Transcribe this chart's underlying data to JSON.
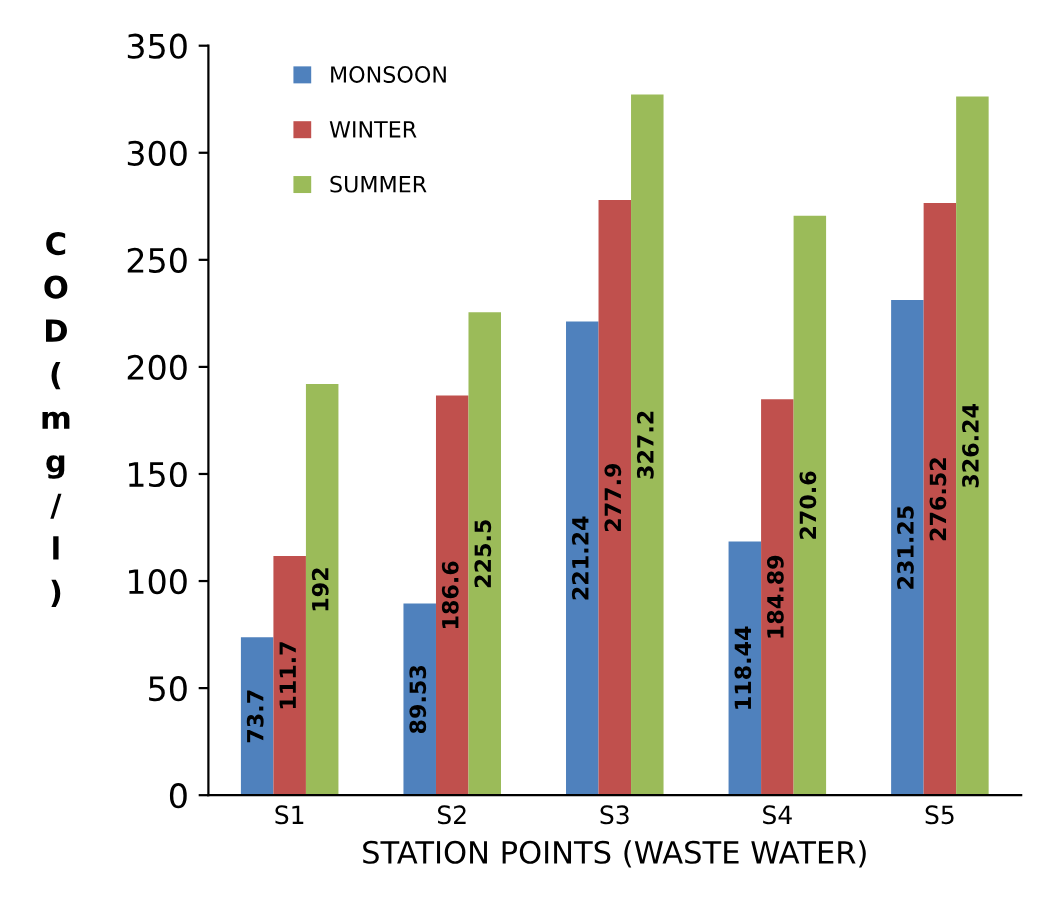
{
  "chart_data": {
    "type": "bar",
    "xlabel": "STATION POINTS (WASTE WATER)",
    "ylabel": "COD (mg/l)",
    "categories": [
      "S1",
      "S2",
      "S3",
      "S4",
      "S5"
    ],
    "series": [
      {
        "name": "MONSOON",
        "color": "#4f81bd",
        "values": [
          73.7,
          89.53,
          221.24,
          118.44,
          231.25
        ]
      },
      {
        "name": "WINTER",
        "color": "#c0504d",
        "values": [
          111.7,
          186.6,
          277.9,
          184.89,
          276.52
        ]
      },
      {
        "name": "SUMMER",
        "color": "#9bbb59",
        "values": [
          192,
          225.5,
          327.2,
          270.6,
          326.24
        ]
      }
    ],
    "ylim": [
      0,
      350
    ],
    "yticks": [
      0,
      50,
      100,
      150,
      200,
      250,
      300,
      350
    ],
    "grid": false,
    "legend": "top left",
    "data_labels": true
  }
}
